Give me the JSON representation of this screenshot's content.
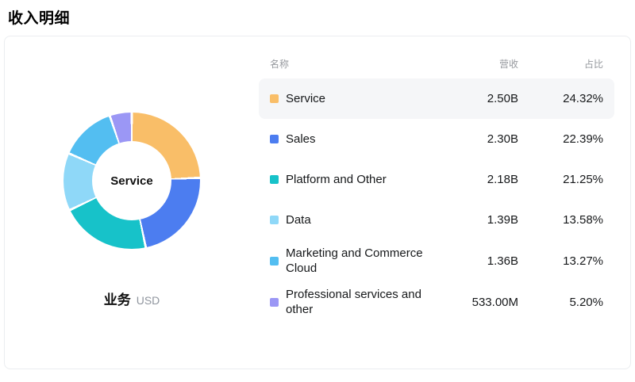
{
  "page": {
    "title": "收入明细"
  },
  "donut": {
    "center_label": "Service",
    "caption": "业务",
    "caption_unit": "USD"
  },
  "table": {
    "headers": {
      "name": "名称",
      "revenue": "营收",
      "share": "占比"
    },
    "rows": [
      {
        "name": "Service",
        "revenue": "2.50B",
        "share": "24.32%",
        "color": "#F9BE68",
        "highlighted": true
      },
      {
        "name": "Sales",
        "revenue": "2.30B",
        "share": "22.39%",
        "color": "#4C7DF0",
        "highlighted": false
      },
      {
        "name": "Platform and Other",
        "revenue": "2.18B",
        "share": "21.25%",
        "color": "#17C2C9",
        "highlighted": false
      },
      {
        "name": "Data",
        "revenue": "1.39B",
        "share": "13.58%",
        "color": "#8FD8F8",
        "highlighted": false
      },
      {
        "name": "Marketing and Commerce Cloud",
        "revenue": "1.36B",
        "share": "13.27%",
        "color": "#53BEF1",
        "highlighted": false
      },
      {
        "name": "Professional services and other",
        "revenue": "533.00M",
        "share": "5.20%",
        "color": "#9B97F5",
        "highlighted": false
      }
    ]
  },
  "chart_data": {
    "type": "pie",
    "title": "收入明细",
    "subtitle": "业务 USD",
    "center_label": "Service",
    "legend_position": "right-table",
    "categories": [
      "Service",
      "Sales",
      "Platform and Other",
      "Data",
      "Marketing and Commerce Cloud",
      "Professional services and other"
    ],
    "values": [
      24.32,
      22.39,
      21.25,
      13.58,
      13.27,
      5.2
    ],
    "series": [
      {
        "name": "营收",
        "values": [
          "2.50B",
          "2.30B",
          "2.18B",
          "1.39B",
          "1.36B",
          "533.00M"
        ]
      },
      {
        "name": "占比",
        "values": [
          "24.32%",
          "22.39%",
          "21.25%",
          "13.58%",
          "13.27%",
          "5.20%"
        ]
      }
    ],
    "colors": [
      "#F9BE68",
      "#4C7DF0",
      "#17C2C9",
      "#8FD8F8",
      "#53BEF1",
      "#9B97F5"
    ]
  }
}
